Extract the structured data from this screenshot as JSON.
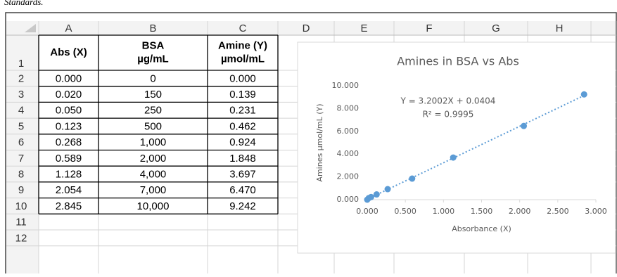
{
  "caption": "Standards.",
  "sheet": {
    "columns": [
      "A",
      "B",
      "C",
      "D",
      "E",
      "F",
      "G",
      "H"
    ],
    "rows": [
      "1",
      "2",
      "3",
      "4",
      "5",
      "6",
      "7",
      "8",
      "9",
      "10",
      "11",
      "12"
    ],
    "header": [
      [
        "Abs (X)"
      ],
      [
        "BSA",
        "µg/mL"
      ],
      [
        "Amine (Y)",
        "µmol/mL"
      ]
    ],
    "cells": [
      [
        "0.000",
        "0",
        "0.000"
      ],
      [
        "0.020",
        "150",
        "0.139"
      ],
      [
        "0.050",
        "250",
        "0.231"
      ],
      [
        "0.123",
        "500",
        "0.462"
      ],
      [
        "0.268",
        "1,000",
        "0.924"
      ],
      [
        "0.589",
        "2,000",
        "1.848"
      ],
      [
        "1.128",
        "4,000",
        "3.697"
      ],
      [
        "2.054",
        "7,000",
        "6.470"
      ],
      [
        "2.845",
        "10,000",
        "9.242"
      ]
    ]
  },
  "chart_data": {
    "type": "scatter",
    "title": "Amines in BSA vs Abs",
    "x_label": "Absorbance (X)",
    "y_label": "Amines µmol/mL (Y)",
    "x": [
      0,
      0.02,
      0.05,
      0.123,
      0.268,
      0.589,
      1.128,
      2.054,
      2.845
    ],
    "values": [
      0,
      0.139,
      0.231,
      0.462,
      0.924,
      1.848,
      3.697,
      6.47,
      9.242
    ],
    "color": "#5b9bd5",
    "trendline": {
      "slope": 3.2002,
      "intercept": 0.0404
    },
    "annotations": [
      "Y = 3.2002X + 0.0404",
      "R² = 0.9995"
    ],
    "xlim": [
      0,
      3
    ],
    "ylim": [
      0,
      10
    ],
    "xticks": [
      {
        "value": 0,
        "label": "0.000"
      },
      {
        "value": 0.5,
        "label": "0.500"
      },
      {
        "value": 1,
        "label": "1.000"
      },
      {
        "value": 1.5,
        "label": "1.500"
      },
      {
        "value": 2,
        "label": "2.000"
      },
      {
        "value": 2.5,
        "label": "2.500"
      },
      {
        "value": 3,
        "label": "3.000"
      }
    ],
    "yticks": [
      {
        "value": 0,
        "label": "0.000"
      },
      {
        "value": 2,
        "label": "2.000"
      },
      {
        "value": 4,
        "label": "4.000"
      },
      {
        "value": 6,
        "label": "6.000"
      },
      {
        "value": 8,
        "label": "8.000"
      },
      {
        "value": 10,
        "label": "10.000"
      }
    ],
    "grid": false
  }
}
